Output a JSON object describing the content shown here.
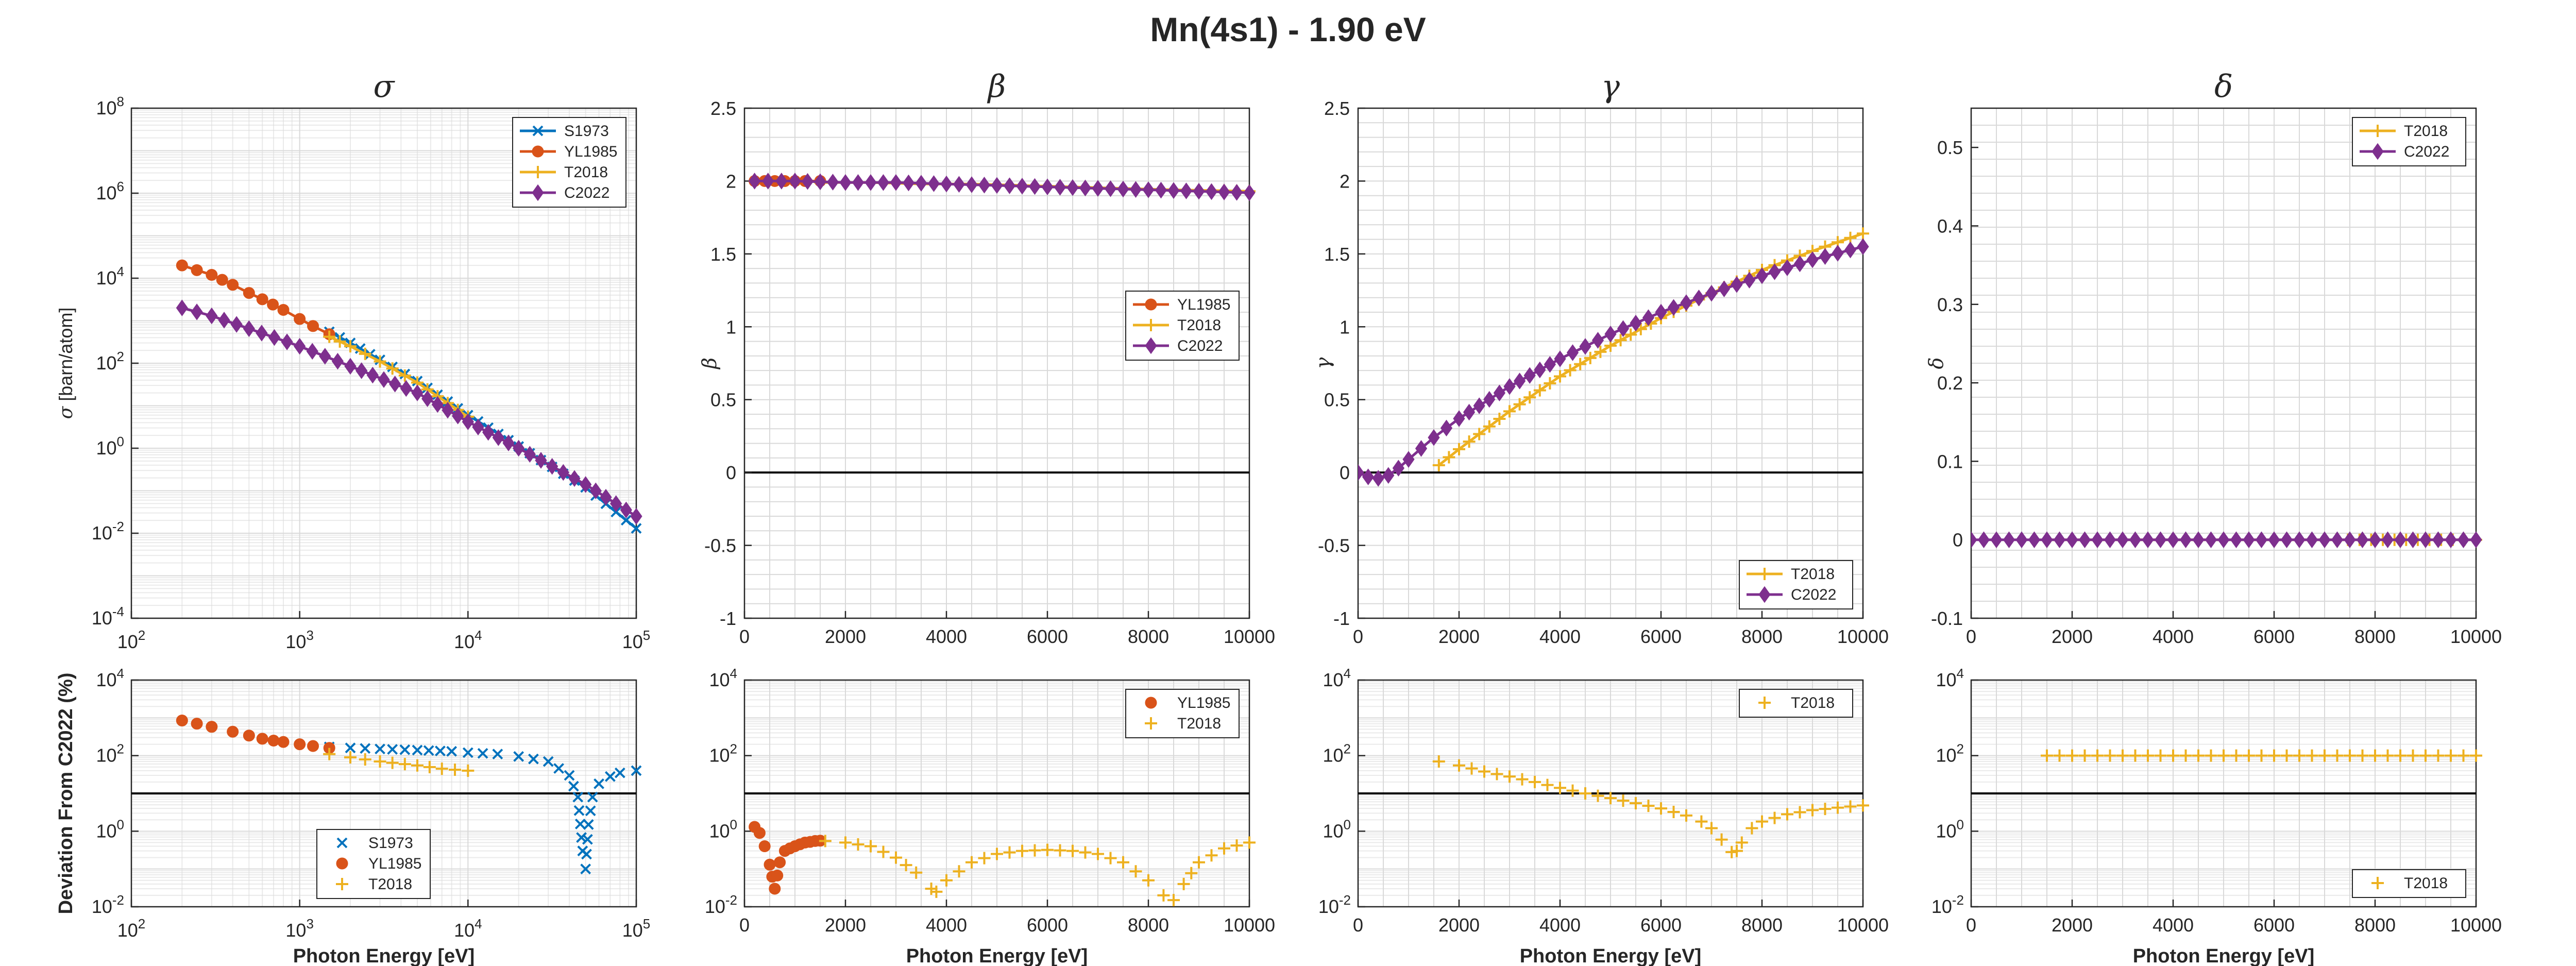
{
  "figure_title": "Mn(4s1) - 1.90 eV",
  "colors": {
    "S1973": "#0072BD",
    "YL1985": "#D95319",
    "T2018": "#EDB120",
    "C2022": "#7E2F8E"
  },
  "bottom_ylabel": "Deviation From C2022 (%)",
  "chart_data": [
    {
      "type": "line",
      "title": "σ",
      "ylabel": "σ [barn/atom]",
      "xlabel": "",
      "xscale": "log",
      "yscale": "log",
      "xlim": [
        100,
        100000
      ],
      "ylim": [
        0.0001,
        100000000
      ],
      "xticks": [
        {
          "v": 100,
          "m": "2"
        },
        {
          "v": 1000,
          "m": "3"
        },
        {
          "v": 10000,
          "m": "4"
        },
        {
          "v": 100000,
          "m": "5"
        }
      ],
      "yticks": [
        {
          "v": 0.0001,
          "m": "-4"
        },
        {
          "v": 0.01,
          "m": "-2"
        },
        {
          "v": 1,
          "m": "0"
        },
        {
          "v": 100,
          "m": "2"
        },
        {
          "v": 10000,
          "m": "4"
        },
        {
          "v": 1000000,
          "m": "6"
        },
        {
          "v": 100000000,
          "m": "8"
        }
      ],
      "grid": true,
      "legend": "top-right",
      "series": [
        {
          "name": "S1973",
          "marker": "x",
          "line": true,
          "x": [
            1500,
            2000,
            3000,
            5000,
            10000,
            20000,
            50000,
            100000
          ],
          "y": [
            550,
            300,
            120,
            38,
            6,
            1.1,
            0.12,
            0.013
          ]
        },
        {
          "name": "YL1985",
          "marker": "o",
          "line": true,
          "x": [
            200,
            300,
            400,
            500,
            600,
            800,
            1000,
            1200,
            1500
          ],
          "y": [
            20000,
            12000,
            7000,
            4500,
            3200,
            1800,
            1100,
            750,
            480
          ]
        },
        {
          "name": "T2018",
          "marker": "+",
          "line": true,
          "x": [
            1500,
            2000,
            3000,
            5000,
            10000
          ],
          "y": [
            420,
            250,
            110,
            35,
            5.5
          ]
        },
        {
          "name": "C2022",
          "marker": "d",
          "line": true,
          "x": [
            200,
            300,
            500,
            1000,
            2000,
            5000,
            10000,
            20000,
            50000,
            100000
          ],
          "y": [
            2000,
            1300,
            650,
            250,
            85,
            20,
            4.2,
            1,
            0.14,
            0.025
          ]
        }
      ]
    },
    {
      "type": "line",
      "title": "β",
      "ylabel": "β",
      "xlabel": "",
      "xscale": "linear",
      "yscale": "linear",
      "xlim": [
        0,
        10000
      ],
      "ylim": [
        -1,
        2.5
      ],
      "xticks": [
        {
          "v": 0,
          "t": "0"
        },
        {
          "v": 2000,
          "t": "2000"
        },
        {
          "v": 4000,
          "t": "4000"
        },
        {
          "v": 6000,
          "t": "6000"
        },
        {
          "v": 8000,
          "t": "8000"
        },
        {
          "v": 10000,
          "t": "10000"
        }
      ],
      "yticks": [
        {
          "v": -1,
          "t": "-1"
        },
        {
          "v": -0.5,
          "t": "-0.5"
        },
        {
          "v": 0,
          "t": "0"
        },
        {
          "v": 0.5,
          "t": "0.5"
        },
        {
          "v": 1,
          "t": "1"
        },
        {
          "v": 1.5,
          "t": "1.5"
        },
        {
          "v": 2,
          "t": "2"
        },
        {
          "v": 2.5,
          "t": "2.5"
        }
      ],
      "zero_line": 0,
      "grid": true,
      "legend": "right",
      "series": [
        {
          "name": "YL1985",
          "marker": "o",
          "line": true,
          "x": [
            200,
            400,
            600,
            800,
            1000,
            1200,
            1500
          ],
          "y": [
            2,
            2,
            2,
            2,
            2,
            2,
            2
          ]
        },
        {
          "name": "T2018",
          "marker": "+",
          "line": true,
          "x": [
            1500,
            2500,
            3500,
            4500,
            5500,
            6500,
            7500,
            8500,
            10000
          ],
          "y": [
            1.99,
            1.99,
            1.98,
            1.98,
            1.97,
            1.96,
            1.95,
            1.94,
            1.93
          ]
        },
        {
          "name": "C2022",
          "marker": "d",
          "line": true,
          "x": [
            200,
            1000,
            2000,
            3000,
            4000,
            5000,
            6000,
            7000,
            8000,
            9000,
            10000
          ],
          "y": [
            2,
            2,
            1.99,
            1.99,
            1.98,
            1.97,
            1.96,
            1.95,
            1.94,
            1.93,
            1.92
          ]
        }
      ]
    },
    {
      "type": "line",
      "title": "γ",
      "ylabel": "γ",
      "xlabel": "",
      "xscale": "linear",
      "yscale": "linear",
      "xlim": [
        0,
        10000
      ],
      "ylim": [
        -1,
        2.5
      ],
      "xticks": [
        {
          "v": 0,
          "t": "0"
        },
        {
          "v": 2000,
          "t": "2000"
        },
        {
          "v": 4000,
          "t": "4000"
        },
        {
          "v": 6000,
          "t": "6000"
        },
        {
          "v": 8000,
          "t": "8000"
        },
        {
          "v": 10000,
          "t": "10000"
        }
      ],
      "yticks": [
        {
          "v": -1,
          "t": "-1"
        },
        {
          "v": -0.5,
          "t": "-0.5"
        },
        {
          "v": 0,
          "t": "0"
        },
        {
          "v": 0.5,
          "t": "0.5"
        },
        {
          "v": 1,
          "t": "1"
        },
        {
          "v": 1.5,
          "t": "1.5"
        },
        {
          "v": 2,
          "t": "2"
        },
        {
          "v": 2.5,
          "t": "2.5"
        }
      ],
      "zero_line": 0,
      "grid": true,
      "legend": "bottom-right",
      "series": [
        {
          "name": "T2018",
          "marker": "+",
          "line": true,
          "x": [
            1600,
            2000,
            3000,
            4000,
            5000,
            6000,
            7000,
            8000,
            9000,
            10000
          ],
          "y": [
            0.05,
            0.16,
            0.42,
            0.66,
            0.87,
            1.06,
            1.23,
            1.39,
            1.52,
            1.64
          ]
        },
        {
          "name": "C2022",
          "marker": "d",
          "line": true,
          "x": [
            0,
            200,
            400,
            600,
            800,
            1000,
            1500,
            2000,
            3000,
            4000,
            5000,
            6000,
            7000,
            8000,
            9000,
            10000
          ],
          "y": [
            0,
            -0.03,
            -0.04,
            -0.02,
            0.03,
            0.09,
            0.24,
            0.37,
            0.59,
            0.78,
            0.95,
            1.1,
            1.23,
            1.35,
            1.46,
            1.55
          ]
        }
      ]
    },
    {
      "type": "line",
      "title": "δ",
      "ylabel": "δ",
      "xlabel": "",
      "xscale": "linear",
      "yscale": "linear",
      "xlim": [
        0,
        10000
      ],
      "ylim": [
        -0.1,
        0.55
      ],
      "xticks": [
        {
          "v": 0,
          "t": "0"
        },
        {
          "v": 2000,
          "t": "2000"
        },
        {
          "v": 4000,
          "t": "4000"
        },
        {
          "v": 6000,
          "t": "6000"
        },
        {
          "v": 8000,
          "t": "8000"
        },
        {
          "v": 10000,
          "t": "10000"
        }
      ],
      "yticks": [
        {
          "v": -0.1,
          "t": "-0.1"
        },
        {
          "v": 0,
          "t": "0"
        },
        {
          "v": 0.1,
          "t": "0.1"
        },
        {
          "v": 0.2,
          "t": "0.2"
        },
        {
          "v": 0.3,
          "t": "0.3"
        },
        {
          "v": 0.4,
          "t": "0.4"
        },
        {
          "v": 0.5,
          "t": "0.5"
        }
      ],
      "grid": true,
      "legend": "top-right",
      "series": [
        {
          "name": "T2018",
          "marker": "+",
          "line": true,
          "x": [
            1500,
            3000,
            5000,
            7000,
            10000
          ],
          "y": [
            0,
            0,
            0,
            0,
            0
          ]
        },
        {
          "name": "C2022",
          "marker": "d",
          "line": true,
          "x": [
            0,
            1000,
            2000,
            4000,
            6000,
            8000,
            10000
          ],
          "y": [
            0,
            0,
            0,
            0,
            0,
            0,
            0
          ]
        }
      ]
    },
    {
      "type": "scatter",
      "title": "",
      "ylabel": "Deviation From C2022 (%)",
      "xlabel": "Photon Energy [eV]",
      "xscale": "log",
      "yscale": "log",
      "xlim": [
        100,
        100000
      ],
      "ylim": [
        0.01,
        10000
      ],
      "xticks": [
        {
          "v": 100,
          "m": "2"
        },
        {
          "v": 1000,
          "m": "3"
        },
        {
          "v": 10000,
          "m": "4"
        },
        {
          "v": 100000,
          "m": "5"
        }
      ],
      "yticks": [
        {
          "v": 0.01,
          "m": "-2"
        },
        {
          "v": 1,
          "m": "0"
        },
        {
          "v": 100,
          "m": "2"
        },
        {
          "v": 10000,
          "m": "4"
        }
      ],
      "ref_line": 10,
      "grid": true,
      "legend": "bottom-center",
      "series": [
        {
          "name": "S1973",
          "marker": "x",
          "line": false,
          "x": [
            1500,
            2000,
            3000,
            5000,
            8000,
            10000,
            15000,
            20000,
            30000,
            40000,
            45000,
            48000,
            50000,
            52000,
            55000,
            60000,
            70000,
            80000,
            100000
          ],
          "y": [
            170,
            160,
            150,
            140,
            130,
            120,
            110,
            95,
            70,
            30,
            8,
            0.3,
            0.1,
            1.5,
            8,
            18,
            28,
            35,
            40
          ]
        },
        {
          "name": "YL1985",
          "marker": "o",
          "line": false,
          "x": [
            200,
            300,
            400,
            500,
            600,
            700,
            800,
            1000,
            1200,
            1500
          ],
          "y": [
            850,
            580,
            430,
            340,
            280,
            250,
            230,
            200,
            180,
            160
          ]
        },
        {
          "name": "T2018",
          "marker": "+",
          "line": false,
          "x": [
            1500,
            2000,
            3000,
            5000,
            7000,
            10000
          ],
          "y": [
            110,
            90,
            70,
            55,
            45,
            40
          ]
        }
      ]
    },
    {
      "type": "scatter",
      "title": "",
      "ylabel": "",
      "xlabel": "Photon Energy [eV]",
      "xscale": "linear",
      "yscale": "log",
      "xlim": [
        0,
        10000
      ],
      "ylim": [
        0.01,
        10000
      ],
      "xticks": [
        {
          "v": 0,
          "t": "0"
        },
        {
          "v": 2000,
          "t": "2000"
        },
        {
          "v": 4000,
          "t": "4000"
        },
        {
          "v": 6000,
          "t": "6000"
        },
        {
          "v": 8000,
          "t": "8000"
        },
        {
          "v": 10000,
          "t": "10000"
        }
      ],
      "yticks": [
        {
          "v": 0.01,
          "m": "-2"
        },
        {
          "v": 1,
          "m": "0"
        },
        {
          "v": 100,
          "m": "2"
        },
        {
          "v": 10000,
          "m": "4"
        }
      ],
      "ref_line": 10,
      "grid": true,
      "legend": "top-right",
      "series": [
        {
          "name": "YL1985",
          "marker": "o",
          "line": false,
          "x": [
            200,
            300,
            400,
            500,
            600,
            700,
            800,
            900,
            1000,
            1100,
            1200,
            1300,
            1400,
            1500
          ],
          "y": [
            1.3,
            0.9,
            0.4,
            0.13,
            0.03,
            0.15,
            0.3,
            0.35,
            0.4,
            0.45,
            0.5,
            0.52,
            0.55,
            0.56
          ]
        },
        {
          "name": "T2018",
          "marker": "+",
          "line": false,
          "x": [
            1600,
            2000,
            2500,
            3000,
            3400,
            3700,
            3800,
            4000,
            4500,
            5000,
            5500,
            6000,
            6500,
            7000,
            7500,
            8000,
            8300,
            8500,
            8700,
            9000,
            9500,
            10000
          ],
          "y": [
            0.55,
            0.5,
            0.4,
            0.2,
            0.08,
            0.03,
            0.025,
            0.05,
            0.15,
            0.25,
            0.3,
            0.32,
            0.3,
            0.25,
            0.15,
            0.05,
            0.02,
            0.015,
            0.04,
            0.15,
            0.35,
            0.5
          ]
        }
      ]
    },
    {
      "type": "scatter",
      "title": "",
      "ylabel": "",
      "xlabel": "Photon Energy [eV]",
      "xscale": "linear",
      "yscale": "log",
      "xlim": [
        0,
        10000
      ],
      "ylim": [
        0.01,
        10000
      ],
      "xticks": [
        {
          "v": 0,
          "t": "0"
        },
        {
          "v": 2000,
          "t": "2000"
        },
        {
          "v": 4000,
          "t": "4000"
        },
        {
          "v": 6000,
          "t": "6000"
        },
        {
          "v": 8000,
          "t": "8000"
        },
        {
          "v": 10000,
          "t": "10000"
        }
      ],
      "yticks": [
        {
          "v": 0.01,
          "m": "-2"
        },
        {
          "v": 1,
          "m": "0"
        },
        {
          "v": 100,
          "m": "2"
        },
        {
          "v": 10000,
          "m": "4"
        }
      ],
      "ref_line": 10,
      "grid": true,
      "legend": "top-right",
      "series": [
        {
          "name": "T2018",
          "marker": "+",
          "line": false,
          "x": [
            1600,
            2000,
            2500,
            3000,
            3500,
            4000,
            4500,
            5000,
            5500,
            6000,
            6500,
            6800,
            7000,
            7200,
            7400,
            7500,
            7600,
            7800,
            8000,
            8500,
            9000,
            9500,
            10000
          ],
          "y": [
            70,
            55,
            38,
            28,
            20,
            14,
            10,
            7.5,
            5.5,
            4,
            2.6,
            1.8,
            1.2,
            0.6,
            0.28,
            0.3,
            0.5,
            1.2,
            1.8,
            2.8,
            3.6,
            4.2,
            4.8
          ]
        }
      ]
    },
    {
      "type": "scatter",
      "title": "",
      "ylabel": "",
      "xlabel": "Photon Energy [eV]",
      "xscale": "linear",
      "yscale": "log",
      "xlim": [
        0,
        10000
      ],
      "ylim": [
        0.01,
        10000
      ],
      "xticks": [
        {
          "v": 0,
          "t": "0"
        },
        {
          "v": 2000,
          "t": "2000"
        },
        {
          "v": 4000,
          "t": "4000"
        },
        {
          "v": 6000,
          "t": "6000"
        },
        {
          "v": 8000,
          "t": "8000"
        },
        {
          "v": 10000,
          "t": "10000"
        }
      ],
      "yticks": [
        {
          "v": 0.01,
          "m": "-2"
        },
        {
          "v": 1,
          "m": "0"
        },
        {
          "v": 100,
          "m": "2"
        },
        {
          "v": 10000,
          "m": "4"
        }
      ],
      "ref_line": 10,
      "grid": true,
      "legend": "bottom-right",
      "series": [
        {
          "name": "T2018",
          "marker": "+",
          "line": false,
          "x": [
            1500,
            2500,
            3500,
            4500,
            5500,
            6500,
            7500,
            8500,
            9500,
            10000
          ],
          "y": [
            100,
            100,
            100,
            100,
            100,
            100,
            100,
            100,
            100,
            100
          ]
        }
      ]
    }
  ]
}
